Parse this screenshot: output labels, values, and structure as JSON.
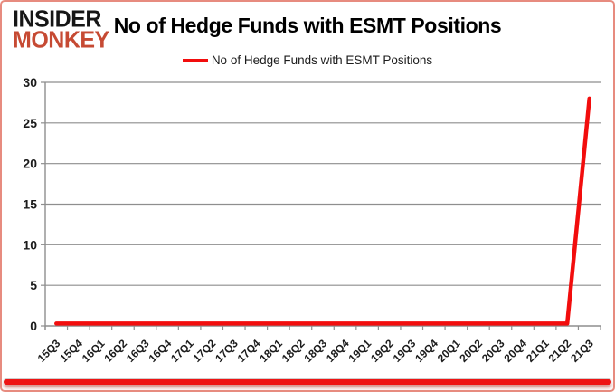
{
  "branding": {
    "line1": "INSIDER",
    "line2": "MONKEY",
    "line2_color": "#c64a33"
  },
  "header": {
    "title": "No of Hedge Funds with ESMT Positions"
  },
  "legend": {
    "label": "No of Hedge Funds with ESMT Positions",
    "line_color": "#f20d0d"
  },
  "accent": {
    "bottom_bar_color": "#ee1414",
    "border_color": "#e78b7f"
  },
  "chart_data": {
    "type": "line",
    "title": "No of Hedge Funds with ESMT Positions",
    "categories": [
      "15Q3",
      "15Q4",
      "16Q1",
      "16Q2",
      "16Q3",
      "16Q4",
      "17Q1",
      "17Q2",
      "17Q3",
      "17Q4",
      "18Q1",
      "18Q2",
      "18Q3",
      "18Q4",
      "19Q1",
      "19Q2",
      "19Q3",
      "19Q4",
      "20Q1",
      "20Q2",
      "20Q3",
      "20Q4",
      "21Q1",
      "21Q2",
      "21Q3"
    ],
    "series": [
      {
        "name": "No of Hedge Funds with ESMT Positions",
        "color": "#f20d0d",
        "values": [
          0,
          0,
          0,
          0,
          0,
          0,
          0,
          0,
          0,
          0,
          0,
          0,
          0,
          0,
          0,
          0,
          0,
          0,
          0,
          0,
          0,
          0,
          0,
          0,
          28
        ]
      }
    ],
    "ylim": [
      0,
      30
    ],
    "yticks": [
      0,
      5,
      10,
      15,
      20,
      25,
      30
    ],
    "grid": true,
    "gridline_color": "#8e8e8e",
    "axis_color": "#8e8e8e",
    "legend_position": "top"
  }
}
